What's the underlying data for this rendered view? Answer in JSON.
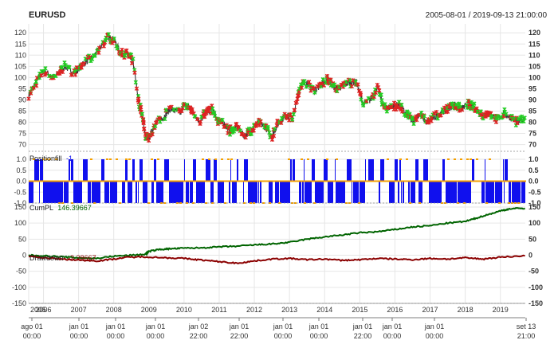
{
  "header": {
    "symbol": "EURUSD",
    "date_range": "2005-08-01 / 2019-09-13 21:00:00"
  },
  "colors": {
    "price_line": "#3a3a3a",
    "buy_marker": "#22cc22",
    "sell_marker": "#dd2222",
    "position_bar": "#1010ee",
    "position_dot": "#f5a000",
    "cumpl_line": "#006400",
    "drawdown_line": "#8b0000",
    "grid": "#e6e6e6",
    "panel_sep": "#888888"
  },
  "panels": {
    "position": {
      "label": "Positionfill",
      "value": "-1"
    },
    "cumpl": {
      "label": "CumPL",
      "value": "146.39667"
    },
    "drawdown": {
      "label": "Drawdown",
      "value": "-2.28667"
    }
  },
  "chart_data": {
    "type": "line",
    "title": "EURUSD",
    "price": {
      "ylim": [
        67,
        124
      ],
      "ticks": [
        "70",
        "75",
        "80",
        "85",
        "90",
        "95",
        "100",
        "105",
        "110",
        "115",
        "120"
      ],
      "x": [
        2005.58,
        2005.8,
        2006.0,
        2006.3,
        2006.6,
        2006.9,
        2007.1,
        2007.4,
        2007.6,
        2007.8,
        2008.0,
        2008.2,
        2008.4,
        2008.55,
        2008.7,
        2008.8,
        2008.9,
        2009.0,
        2009.2,
        2009.4,
        2009.6,
        2009.9,
        2010.0,
        2010.2,
        2010.45,
        2010.6,
        2010.8,
        2010.95,
        2011.1,
        2011.3,
        2011.5,
        2011.7,
        2011.9,
        2012.1,
        2012.3,
        2012.5,
        2012.7,
        2012.9,
        2013.1,
        2013.3,
        2013.5,
        2013.7,
        2013.9,
        2014.1,
        2014.3,
        2014.5,
        2014.7,
        2014.9,
        2015.1,
        2015.3,
        2015.5,
        2015.7,
        2015.9,
        2016.1,
        2016.3,
        2016.5,
        2016.7,
        2016.9,
        2017.1,
        2017.3,
        2017.5,
        2017.7,
        2017.9,
        2018.1,
        2018.3,
        2018.5,
        2018.7,
        2018.9,
        2019.1,
        2019.3,
        2019.5,
        2019.7
      ],
      "y": [
        92,
        98,
        103,
        100,
        105,
        102,
        106,
        109,
        113,
        118,
        117,
        111,
        110,
        107,
        90,
        84,
        74,
        73,
        80,
        82,
        86,
        84,
        88,
        86,
        80,
        84,
        86,
        81,
        80,
        76,
        78,
        74,
        76,
        80,
        78,
        74,
        80,
        83,
        82,
        96,
        98,
        94,
        97,
        99,
        95,
        96,
        98,
        98,
        88,
        90,
        96,
        86,
        87,
        88,
        84,
        80,
        84,
        80,
        82,
        84,
        86,
        88,
        86,
        88,
        86,
        83,
        84,
        81,
        84,
        82,
        80,
        82
      ]
    },
    "position": {
      "ylim": [
        -1.0,
        1.0
      ],
      "ticks": [
        "-1.0",
        "-0.5",
        "0.0",
        "0.5",
        "1.0"
      ]
    },
    "pnl": {
      "ylim": [
        -150,
        150
      ],
      "ticks": [
        "-150",
        "-100",
        "-50",
        "0",
        "50",
        "100",
        "150"
      ],
      "cumpl_x": [
        2005.58,
        2006.0,
        2006.5,
        2007.0,
        2007.5,
        2008.0,
        2008.5,
        2008.9,
        2009.0,
        2009.3,
        2009.6,
        2010.0,
        2010.5,
        2011.0,
        2011.5,
        2012.0,
        2012.5,
        2013.0,
        2013.5,
        2014.0,
        2014.5,
        2015.0,
        2015.5,
        2016.0,
        2016.5,
        2017.0,
        2017.5,
        2018.0,
        2018.3,
        2018.6,
        2019.0,
        2019.3,
        2019.7
      ],
      "cumpl_y": [
        0,
        -2,
        -5,
        -8,
        -10,
        -3,
        0,
        3,
        12,
        18,
        20,
        22,
        23,
        26,
        28,
        32,
        35,
        40,
        50,
        57,
        63,
        70,
        73,
        80,
        88,
        92,
        100,
        105,
        115,
        125,
        138,
        145,
        146
      ],
      "drawdown_x": [
        2005.58,
        2006.0,
        2006.5,
        2007.0,
        2007.5,
        2008.0,
        2008.4,
        2008.9,
        2009.5,
        2010.0,
        2010.5,
        2011.0,
        2011.5,
        2012.0,
        2012.5,
        2013.0,
        2013.5,
        2014.0,
        2014.5,
        2015.0,
        2015.5,
        2016.0,
        2016.5,
        2017.0,
        2017.5,
        2018.0,
        2018.5,
        2019.0,
        2019.7
      ],
      "drawdown_y": [
        -3,
        -8,
        -12,
        -15,
        -18,
        -12,
        -6,
        -5,
        -8,
        -10,
        -15,
        -20,
        -25,
        -18,
        -12,
        -10,
        -14,
        -12,
        -16,
        -14,
        -10,
        -12,
        -14,
        -10,
        -12,
        -8,
        -12,
        -6,
        -2
      ]
    },
    "x_axis": {
      "xlim": [
        2005.58,
        2019.71
      ],
      "year_ticks": [
        "2005",
        "2006",
        "2007",
        "2008",
        "2009",
        "2010",
        "2011",
        "2012",
        "2013",
        "2014",
        "2015",
        "2016",
        "2017",
        "2018",
        "2019"
      ],
      "date_ticks": [
        {
          "line1": "ago 01",
          "line2": "00:00"
        },
        {
          "line1": "jan 01",
          "line2": "00:00"
        },
        {
          "line1": "jan 01",
          "line2": "00:00"
        },
        {
          "line1": "jan 01",
          "line2": "00:00"
        },
        {
          "line1": "jan 02",
          "line2": "22:00"
        },
        {
          "line1": "jan 01",
          "line2": "22:00"
        },
        {
          "line1": "jan 01",
          "line2": "00:00"
        },
        {
          "line1": "jan 01",
          "line2": "00:00"
        },
        {
          "line1": "jan 01",
          "line2": "22:00"
        },
        {
          "line1": "jan 01",
          "line2": "00:00"
        },
        {
          "line1": "jan 01",
          "line2": "00:00"
        },
        {
          "line1": "set 13",
          "line2": "21:00"
        }
      ]
    }
  }
}
